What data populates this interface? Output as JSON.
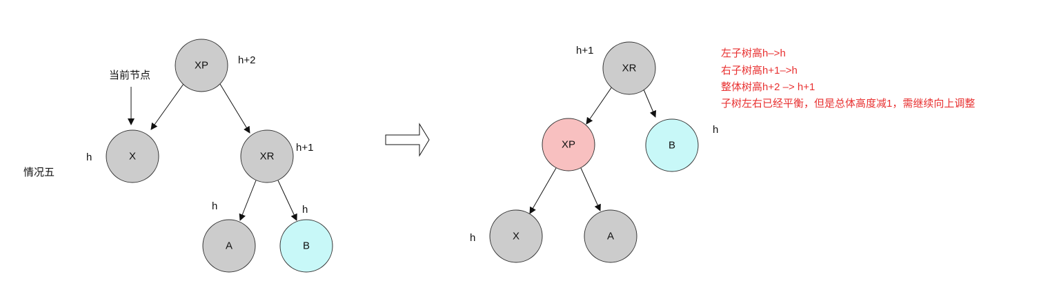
{
  "colors": {
    "gray": "#cccccc",
    "pink": "#f8c0c0",
    "cyan": "#c8f8f8",
    "stroke": "#333333",
    "note": "#e83030"
  },
  "left": {
    "case_label": "情况五",
    "current_node_label": "当前节点",
    "nodes": {
      "xp": "XP",
      "x": "X",
      "xr": "XR",
      "a": "A",
      "b": "B"
    },
    "heights": {
      "xp": "h+2",
      "x": "h",
      "xr": "h+1",
      "a": "h",
      "b": "h"
    }
  },
  "right": {
    "nodes": {
      "xr": "XR",
      "xp": "XP",
      "b": "B",
      "x": "X",
      "a": "A"
    },
    "heights": {
      "xr": "h+1",
      "b": "h",
      "x": "h"
    }
  },
  "notes": [
    "左子树高h–>h",
    "右子树高h+1–>h",
    "整体树高h+2 –> h+1",
    "子树左右已经平衡，但是总体高度减1，需继续向上调整"
  ]
}
